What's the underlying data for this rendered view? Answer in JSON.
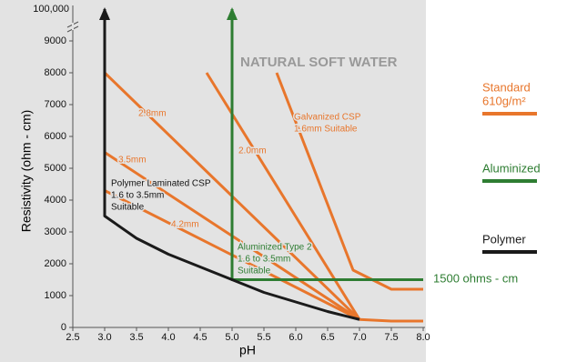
{
  "chart_data": {
    "type": "line",
    "x_label": "pH",
    "y_label": "Resistivity (ohm - cm)",
    "axis_break_label": "100,000",
    "xlim": [
      2.5,
      8.0
    ],
    "ylim": [
      0,
      10000
    ],
    "xticks": [
      {
        "value": 2.5,
        "label": "2.5"
      },
      {
        "value": 3,
        "label": "3.0"
      },
      {
        "value": 3.5,
        "label": "3.5"
      },
      {
        "value": 4,
        "label": "4.0"
      },
      {
        "value": 4.5,
        "label": "4.5"
      },
      {
        "value": 5,
        "label": "5.0"
      },
      {
        "value": 5.5,
        "label": "5.5"
      },
      {
        "value": 6,
        "label": "6.0"
      },
      {
        "value": 6.5,
        "label": "6.5"
      },
      {
        "value": 7,
        "label": "7.0"
      },
      {
        "value": 7.5,
        "label": "7.5"
      },
      {
        "value": 8,
        "label": "8.0"
      }
    ],
    "yticks": [
      0,
      1000,
      2000,
      3000,
      4000,
      5000,
      6000,
      7000,
      8000,
      9000
    ],
    "series": [
      {
        "color": "#e8762c",
        "x": [
          3.0,
          7.0
        ],
        "values": [
          8000,
          250
        ]
      },
      {
        "color": "#e8762c",
        "x": [
          3.0,
          7.0
        ],
        "values": [
          5500,
          250
        ]
      },
      {
        "color": "#e8762c",
        "x": [
          3.0,
          7.0
        ],
        "values": [
          4300,
          250
        ]
      },
      {
        "color": "#e8762c",
        "x": [
          4.6,
          7.0
        ],
        "values": [
          8000,
          250
        ]
      },
      {
        "color": "#e8762c",
        "x": [
          5.7,
          6.9,
          7.5,
          8.0
        ],
        "values": [
          8000,
          1800,
          1200,
          1200
        ]
      },
      {
        "color": "#e8762c",
        "x": [
          7.0,
          7.5,
          8.0
        ],
        "values": [
          250,
          200,
          200
        ]
      },
      {
        "color": "#2e7d32",
        "x": [
          5.0,
          5.0,
          8.0
        ],
        "values": [
          10000,
          1500,
          1500
        ]
      },
      {
        "color": "#1a1a1a",
        "x": [
          3.0,
          3.0,
          3.5,
          4.0,
          4.5,
          5.0,
          5.5,
          6.0,
          6.5,
          7.0
        ],
        "values": [
          10000,
          3500,
          2800,
          2300,
          1900,
          1500,
          1100,
          800,
          500,
          250
        ]
      }
    ],
    "annotations": [
      {
        "lines": [
          "2.8mm"
        ],
        "color": "#e8762c"
      },
      {
        "lines": [
          "3.5mm"
        ],
        "color": "#e8762c"
      },
      {
        "lines": [
          "4.2mm"
        ],
        "color": "#e8762c"
      },
      {
        "lines": [
          "2.0mm"
        ],
        "color": "#e8762c"
      },
      {
        "lines": [
          "Galvanized CSP",
          "1.6mm Suitable"
        ],
        "color": "#e8762c"
      },
      {
        "lines": [
          "Polymer Laminated CSP",
          "1.6 to 3.5mm",
          "Suitable"
        ],
        "color": "#111111"
      },
      {
        "lines": [
          "Aluminized Type 2",
          "1.6 to 3.5mm",
          "Suitable"
        ],
        "color": "#2e7d32"
      },
      {
        "lines": [
          "NATURAL SOFT WATER"
        ],
        "color": "#999999"
      },
      {
        "lines": [
          "1500 ohms - cm"
        ],
        "color": "#2e7d32"
      }
    ],
    "legend": [
      {
        "lines": [
          "Standard",
          "610g/m²"
        ],
        "color": "#e8762c"
      },
      {
        "lines": [
          "Aluminized"
        ],
        "color": "#2e7d32"
      },
      {
        "lines": [
          "Polymer"
        ],
        "color": "#1a1a1a"
      }
    ]
  }
}
